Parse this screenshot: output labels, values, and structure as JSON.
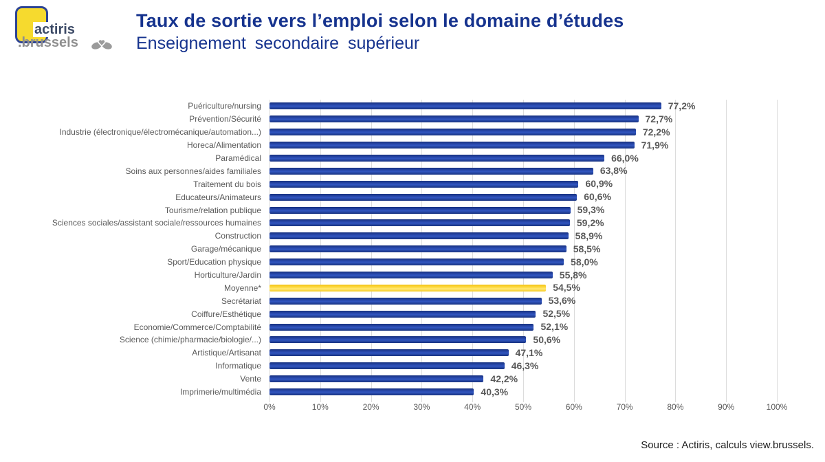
{
  "logo": {
    "brand": "actiris",
    "suffix": ".brussels",
    "icon": "hands-heart-icon"
  },
  "chart_data": {
    "type": "bar",
    "orientation": "horizontal",
    "title": "Taux de sortie vers l’emploi selon le domaine d’études",
    "subtitle": "Enseignement secondaire supérieur",
    "xlabel": "",
    "ylabel": "",
    "xlim": [
      0,
      100
    ],
    "x_ticks": [
      "0%",
      "10%",
      "20%",
      "30%",
      "40%",
      "50%",
      "60%",
      "70%",
      "80%",
      "90%",
      "100%"
    ],
    "grid": true,
    "legend_position": "none",
    "bar_color": "#1F3C9E",
    "highlight_color": "#FFD320",
    "highlight_index": 14,
    "highlight_category": "Moyenne*",
    "categories": [
      "Puériculture/nursing",
      "Prévention/Sécurité",
      "Industrie (électronique/électromécanique/automation...)",
      "Horeca/Alimentation",
      "Paramédical",
      "Soins aux personnes/aides familiales",
      "Traitement du bois",
      "Educateurs/Animateurs",
      "Tourisme/relation publique",
      "Sciences sociales/assistant sociale/ressources humaines",
      "Construction",
      "Garage/mécanique",
      "Sport/Education physique",
      "Horticulture/Jardin",
      "Moyenne*",
      "Secrétariat",
      "Coiffure/Esthétique",
      "Economie/Commerce/Comptabilité",
      "Science (chimie/pharmacie/biologie/...)",
      "Artistique/Artisanat",
      "Informatique",
      "Vente",
      "Imprimerie/multimédia"
    ],
    "values": [
      77.2,
      72.7,
      72.2,
      71.9,
      66.0,
      63.8,
      60.9,
      60.6,
      59.3,
      59.2,
      58.9,
      58.5,
      58.0,
      55.8,
      54.5,
      53.6,
      52.5,
      52.1,
      50.6,
      47.1,
      46.3,
      42.2,
      40.3
    ],
    "value_labels": [
      "77,2%",
      "72,7%",
      "72,2%",
      "71,9%",
      "66,0%",
      "63,8%",
      "60,9%",
      "60,6%",
      "59,3%",
      "59,2%",
      "58,9%",
      "58,5%",
      "58,0%",
      "55,8%",
      "54,5%",
      "53,6%",
      "52,5%",
      "52,1%",
      "50,6%",
      "47,1%",
      "46,3%",
      "42,2%",
      "40,3%"
    ]
  },
  "footer": {
    "source": "Source : Actiris, calculs view.brussels."
  }
}
